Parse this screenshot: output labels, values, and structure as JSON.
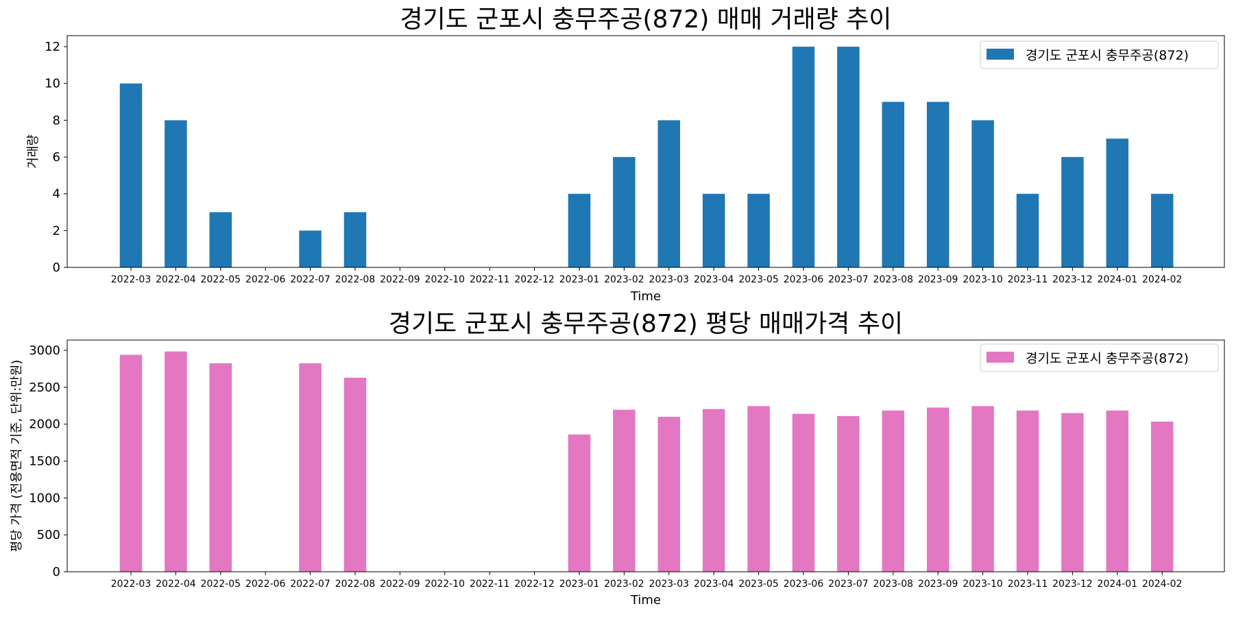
{
  "colors": {
    "volume_bar": "#1f77b4",
    "price_bar": "#e377c2",
    "axis": "#000000",
    "legend_border": "#cccccc"
  },
  "chart_data": [
    {
      "type": "bar",
      "title": "경기도 군포시 충무주공(872) 매매 거래량 추이",
      "xlabel": "Time",
      "ylabel": "거래량",
      "ylim": [
        0,
        12.6
      ],
      "yticks": [
        "0",
        "2",
        "4",
        "6",
        "8",
        "10",
        "12"
      ],
      "ytick_values": [
        0,
        2,
        4,
        6,
        8,
        10,
        12
      ],
      "grid": false,
      "legend_position": "top-right",
      "categories": [
        "2022-03",
        "2022-04",
        "2022-05",
        "2022-06",
        "2022-07",
        "2022-08",
        "2022-09",
        "2022-10",
        "2022-11",
        "2022-12",
        "2023-01",
        "2023-02",
        "2023-03",
        "2023-04",
        "2023-05",
        "2023-06",
        "2023-07",
        "2023-08",
        "2023-09",
        "2023-10",
        "2023-11",
        "2023-12",
        "2024-01",
        "2024-02"
      ],
      "series": [
        {
          "name": "경기도 군포시 충무주공(872)",
          "values": [
            10,
            8,
            3,
            0,
            2,
            3,
            0,
            0,
            0,
            0,
            4,
            6,
            8,
            4,
            4,
            12,
            12,
            9,
            9,
            8,
            4,
            6,
            7,
            4
          ]
        }
      ]
    },
    {
      "type": "bar",
      "title": "경기도 군포시 충무주공(872) 평당 매매가격 추이",
      "xlabel": "Time",
      "ylabel": "평당 가격 (전용면적 기준, 단위:만원)",
      "ylim": [
        0,
        3140
      ],
      "yticks": [
        "0",
        "500",
        "1000",
        "1500",
        "2000",
        "2500",
        "3000"
      ],
      "ytick_values": [
        0,
        500,
        1000,
        1500,
        2000,
        2500,
        3000
      ],
      "grid": false,
      "legend_position": "top-right",
      "categories": [
        "2022-03",
        "2022-04",
        "2022-05",
        "2022-06",
        "2022-07",
        "2022-08",
        "2022-09",
        "2022-10",
        "2022-11",
        "2022-12",
        "2023-01",
        "2023-02",
        "2023-03",
        "2023-04",
        "2023-05",
        "2023-06",
        "2023-07",
        "2023-08",
        "2023-09",
        "2023-10",
        "2023-11",
        "2023-12",
        "2024-01",
        "2024-02"
      ],
      "series": [
        {
          "name": "경기도 군포시 충무주공(872)",
          "values": [
            2940,
            2985,
            2825,
            0,
            2825,
            2630,
            0,
            0,
            0,
            0,
            1860,
            2195,
            2100,
            2205,
            2245,
            2140,
            2110,
            2185,
            2225,
            2245,
            2185,
            2150,
            2185,
            2035
          ]
        }
      ]
    }
  ]
}
